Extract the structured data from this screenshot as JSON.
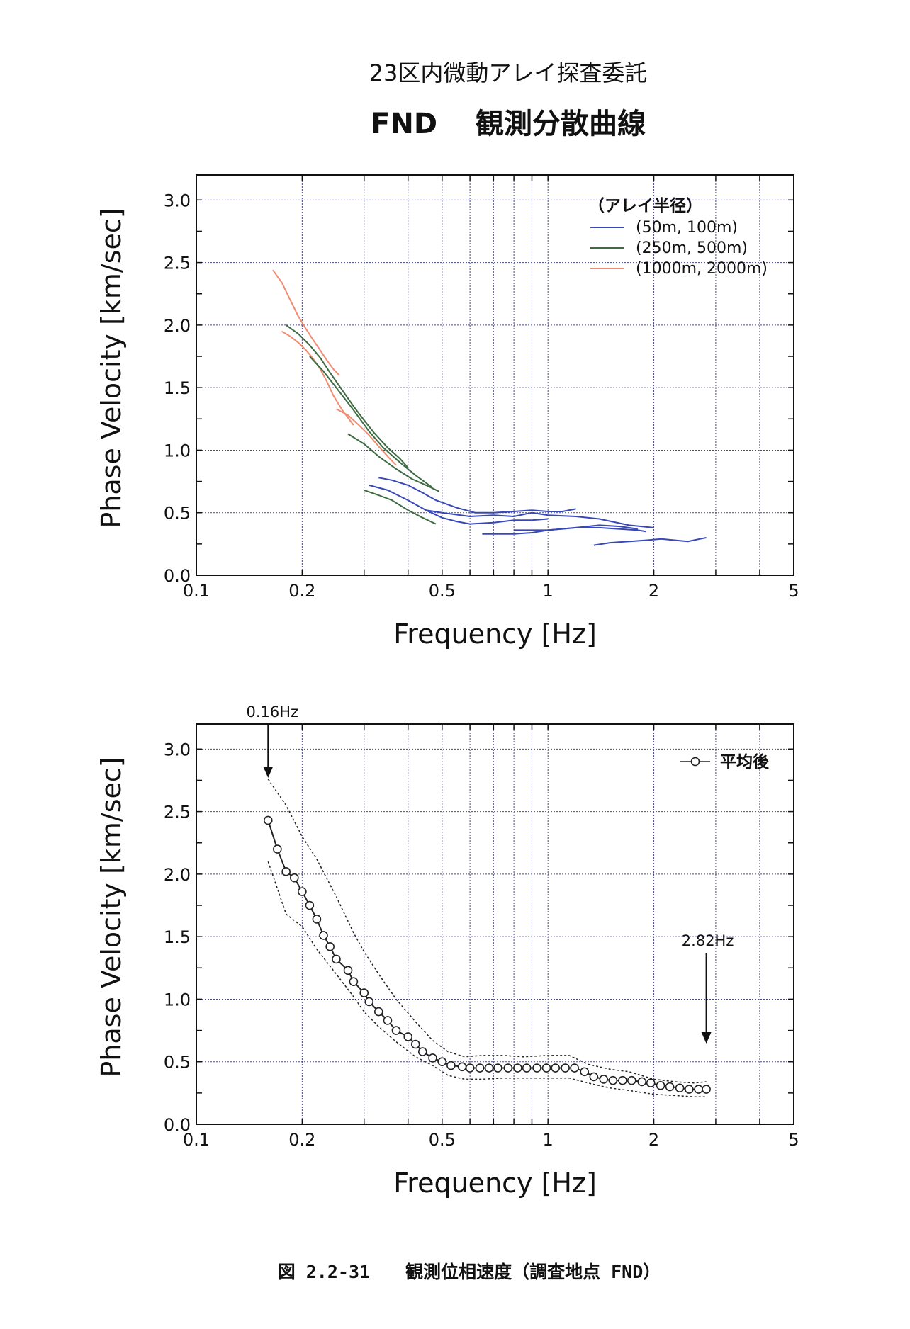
{
  "header": {
    "line1": "23区内微動アレイ探査委託",
    "line2": "FND　 観測分散曲線"
  },
  "caption": "図 2.2-31　　観測位相速度（調査地点 FND）",
  "colors": {
    "blue": "#3848b8",
    "green": "#3d6b42",
    "salmon": "#ef8c72",
    "black": "#222222",
    "grid": "#4a4a8a"
  },
  "chart_data": [
    {
      "type": "line",
      "xscale": "log",
      "xlim": [
        0.1,
        5
      ],
      "ylim": [
        0,
        3.2
      ],
      "xlabel": "Frequency [Hz]",
      "ylabel": "Phase Velocity [km/sec]",
      "xtick_labels": [
        {
          "v": 0.1,
          "t": "0.1"
        },
        {
          "v": 0.2,
          "t": "0.2"
        },
        {
          "v": 0.5,
          "t": "0.5"
        },
        {
          "v": 1,
          "t": "1"
        },
        {
          "v": 2,
          "t": "2"
        },
        {
          "v": 5,
          "t": "5"
        }
      ],
      "ytick_labels": [
        {
          "v": 0.0,
          "t": "0.0"
        },
        {
          "v": 0.5,
          "t": "0.5"
        },
        {
          "v": 1.0,
          "t": "1.0"
        },
        {
          "v": 1.5,
          "t": "1.5"
        },
        {
          "v": 2.0,
          "t": "2.0"
        },
        {
          "v": 2.5,
          "t": "2.5"
        },
        {
          "v": 3.0,
          "t": "3.0"
        }
      ],
      "grid": true,
      "legend": {
        "title": "（アレイ半径）",
        "position": "top-right",
        "entries": [
          {
            "label": "(50m, 100m)",
            "color": "#3848b8"
          },
          {
            "label": "(250m, 500m)",
            "color": "#3d6b42"
          },
          {
            "label": "(1000m, 2000m)",
            "color": "#ef8c72"
          }
        ]
      },
      "series": [
        {
          "group": "(1000m, 2000m)",
          "color": "#ef8c72",
          "x": [
            0.165,
            0.175,
            0.185,
            0.195,
            0.205,
            0.215,
            0.225,
            0.235,
            0.245,
            0.255
          ],
          "y": [
            2.44,
            2.34,
            2.2,
            2.07,
            1.97,
            1.88,
            1.8,
            1.72,
            1.65,
            1.6
          ]
        },
        {
          "group": "(1000m, 2000m)",
          "color": "#ef8c72",
          "x": [
            0.175,
            0.185,
            0.195,
            0.205,
            0.215,
            0.225,
            0.235,
            0.245,
            0.26,
            0.28
          ],
          "y": [
            1.95,
            1.91,
            1.86,
            1.8,
            1.73,
            1.65,
            1.55,
            1.44,
            1.32,
            1.2
          ]
        },
        {
          "group": "(1000m, 2000m)",
          "color": "#ef8c72",
          "x": [
            0.25,
            0.27,
            0.29,
            0.31,
            0.33,
            0.35,
            0.37
          ],
          "y": [
            1.33,
            1.28,
            1.2,
            1.12,
            1.03,
            0.95,
            0.88
          ]
        },
        {
          "group": "(250m, 500m)",
          "color": "#3d6b42",
          "x": [
            0.18,
            0.195,
            0.21,
            0.225,
            0.24,
            0.26,
            0.28,
            0.3,
            0.32,
            0.35,
            0.38,
            0.4
          ],
          "y": [
            2.0,
            1.93,
            1.84,
            1.74,
            1.62,
            1.48,
            1.35,
            1.24,
            1.14,
            1.02,
            0.93,
            0.86
          ]
        },
        {
          "group": "(250m, 500m)",
          "color": "#3d6b42",
          "x": [
            0.21,
            0.23,
            0.25,
            0.28,
            0.31,
            0.34,
            0.38,
            0.42,
            0.47
          ],
          "y": [
            1.75,
            1.63,
            1.5,
            1.32,
            1.15,
            1.02,
            0.9,
            0.8,
            0.7
          ]
        },
        {
          "group": "(250m, 500m)",
          "color": "#3d6b42",
          "x": [
            0.27,
            0.3,
            0.33,
            0.37,
            0.41,
            0.45,
            0.49
          ],
          "y": [
            1.13,
            1.05,
            0.95,
            0.85,
            0.77,
            0.72,
            0.67
          ]
        },
        {
          "group": "(250m, 500m)",
          "color": "#3d6b42",
          "x": [
            0.3,
            0.33,
            0.36,
            0.4,
            0.44,
            0.48
          ],
          "y": [
            0.68,
            0.64,
            0.6,
            0.52,
            0.46,
            0.41
          ]
        },
        {
          "group": "(50m, 100m)",
          "color": "#3848b8",
          "x": [
            0.33,
            0.36,
            0.4,
            0.44,
            0.48,
            0.55,
            0.62,
            0.7,
            0.8,
            0.9,
            1.0,
            1.1,
            1.2
          ],
          "y": [
            0.78,
            0.76,
            0.72,
            0.66,
            0.6,
            0.54,
            0.5,
            0.5,
            0.51,
            0.52,
            0.51,
            0.51,
            0.53
          ]
        },
        {
          "group": "(50m, 100m)",
          "color": "#3848b8",
          "x": [
            0.31,
            0.35,
            0.4,
            0.45,
            0.5,
            0.55,
            0.6,
            0.7,
            0.8,
            0.9,
            1.0
          ],
          "y": [
            0.72,
            0.68,
            0.6,
            0.52,
            0.46,
            0.43,
            0.41,
            0.42,
            0.44,
            0.44,
            0.45
          ]
        },
        {
          "group": "(50m, 100m)",
          "color": "#3848b8",
          "x": [
            0.45,
            0.5,
            0.6,
            0.7,
            0.8,
            0.9,
            1.0,
            1.2,
            1.4,
            1.7,
            2.0
          ],
          "y": [
            0.52,
            0.5,
            0.47,
            0.48,
            0.47,
            0.5,
            0.48,
            0.47,
            0.45,
            0.4,
            0.38
          ]
        },
        {
          "group": "(50m, 100m)",
          "color": "#3848b8",
          "x": [
            0.65,
            0.8,
            0.9,
            1.0,
            1.2,
            1.4,
            1.6,
            1.8
          ],
          "y": [
            0.33,
            0.33,
            0.34,
            0.36,
            0.38,
            0.4,
            0.39,
            0.37
          ]
        },
        {
          "group": "(50m, 100m)",
          "color": "#3848b8",
          "x": [
            0.8,
            1.0,
            1.2,
            1.4,
            1.6,
            1.8,
            1.9
          ],
          "y": [
            0.36,
            0.36,
            0.38,
            0.38,
            0.37,
            0.36,
            0.35
          ]
        },
        {
          "group": "(50m, 100m)",
          "color": "#3848b8",
          "x": [
            1.35,
            1.5,
            1.7,
            1.9,
            2.1,
            2.3,
            2.5,
            2.7,
            2.82
          ],
          "y": [
            0.24,
            0.26,
            0.27,
            0.28,
            0.29,
            0.28,
            0.27,
            0.29,
            0.3
          ]
        }
      ]
    },
    {
      "type": "line",
      "xscale": "log",
      "xlim": [
        0.1,
        5
      ],
      "ylim": [
        0,
        3.2
      ],
      "xlabel": "Frequency [Hz]",
      "ylabel": "Phase Velocity [km/sec]",
      "xtick_labels": [
        {
          "v": 0.1,
          "t": "0.1"
        },
        {
          "v": 0.2,
          "t": "0.2"
        },
        {
          "v": 0.5,
          "t": "0.5"
        },
        {
          "v": 1,
          "t": "1"
        },
        {
          "v": 2,
          "t": "2"
        },
        {
          "v": 5,
          "t": "5"
        }
      ],
      "ytick_labels": [
        {
          "v": 0.0,
          "t": "0.0"
        },
        {
          "v": 0.5,
          "t": "0.5"
        },
        {
          "v": 1.0,
          "t": "1.0"
        },
        {
          "v": 1.5,
          "t": "1.5"
        },
        {
          "v": 2.0,
          "t": "2.0"
        },
        {
          "v": 2.5,
          "t": "2.5"
        },
        {
          "v": 3.0,
          "t": "3.0"
        }
      ],
      "grid": true,
      "legend": {
        "position": "top-right",
        "entries": [
          {
            "label": "平均後",
            "color": "#222222"
          }
        ]
      },
      "annotations": [
        {
          "text": "0.16Hz",
          "x": 0.16,
          "arrow": "down"
        },
        {
          "text": "2.82Hz",
          "x": 2.82,
          "arrow": "down"
        }
      ],
      "series": [
        {
          "name": "平均後",
          "color": "#222222",
          "style": "solid-circles",
          "x": [
            0.16,
            0.17,
            0.18,
            0.19,
            0.2,
            0.21,
            0.22,
            0.23,
            0.24,
            0.25,
            0.27,
            0.28,
            0.3,
            0.31,
            0.33,
            0.35,
            0.37,
            0.4,
            0.42,
            0.44,
            0.47,
            0.5,
            0.53,
            0.57,
            0.6,
            0.64,
            0.68,
            0.72,
            0.77,
            0.82,
            0.87,
            0.93,
            0.99,
            1.05,
            1.12,
            1.19,
            1.27,
            1.35,
            1.44,
            1.53,
            1.63,
            1.73,
            1.85,
            1.96,
            2.09,
            2.22,
            2.37,
            2.52,
            2.68,
            2.82
          ],
          "y": [
            2.43,
            2.2,
            2.02,
            1.97,
            1.86,
            1.75,
            1.64,
            1.51,
            1.42,
            1.32,
            1.23,
            1.14,
            1.05,
            0.98,
            0.9,
            0.83,
            0.75,
            0.7,
            0.64,
            0.58,
            0.53,
            0.5,
            0.47,
            0.46,
            0.45,
            0.45,
            0.45,
            0.45,
            0.45,
            0.45,
            0.45,
            0.45,
            0.45,
            0.45,
            0.45,
            0.45,
            0.42,
            0.38,
            0.36,
            0.35,
            0.35,
            0.35,
            0.34,
            0.33,
            0.31,
            0.3,
            0.29,
            0.28,
            0.28,
            0.28
          ]
        },
        {
          "name": "upper bound",
          "color": "#222222",
          "style": "dashed",
          "x": [
            0.16,
            0.18,
            0.2,
            0.22,
            0.25,
            0.28,
            0.3,
            0.33,
            0.37,
            0.42,
            0.47,
            0.52,
            0.58,
            0.65,
            0.75,
            0.85,
            1.0,
            1.15,
            1.3,
            1.5,
            1.7,
            2.0,
            2.3,
            2.6,
            2.82
          ],
          "y": [
            2.76,
            2.55,
            2.3,
            2.12,
            1.82,
            1.53,
            1.38,
            1.2,
            1.0,
            0.82,
            0.67,
            0.58,
            0.54,
            0.55,
            0.55,
            0.54,
            0.55,
            0.55,
            0.48,
            0.44,
            0.42,
            0.36,
            0.34,
            0.33,
            0.34
          ]
        },
        {
          "name": "lower bound",
          "color": "#222222",
          "style": "dashed",
          "x": [
            0.16,
            0.18,
            0.2,
            0.22,
            0.25,
            0.28,
            0.3,
            0.33,
            0.37,
            0.42,
            0.47,
            0.52,
            0.58,
            0.65,
            0.75,
            0.85,
            1.0,
            1.15,
            1.3,
            1.5,
            1.7,
            2.0,
            2.3,
            2.6,
            2.82
          ],
          "y": [
            2.1,
            1.68,
            1.58,
            1.4,
            1.2,
            1.02,
            0.9,
            0.78,
            0.66,
            0.54,
            0.47,
            0.39,
            0.36,
            0.36,
            0.37,
            0.37,
            0.37,
            0.37,
            0.33,
            0.29,
            0.27,
            0.24,
            0.23,
            0.22,
            0.22
          ]
        }
      ]
    }
  ]
}
